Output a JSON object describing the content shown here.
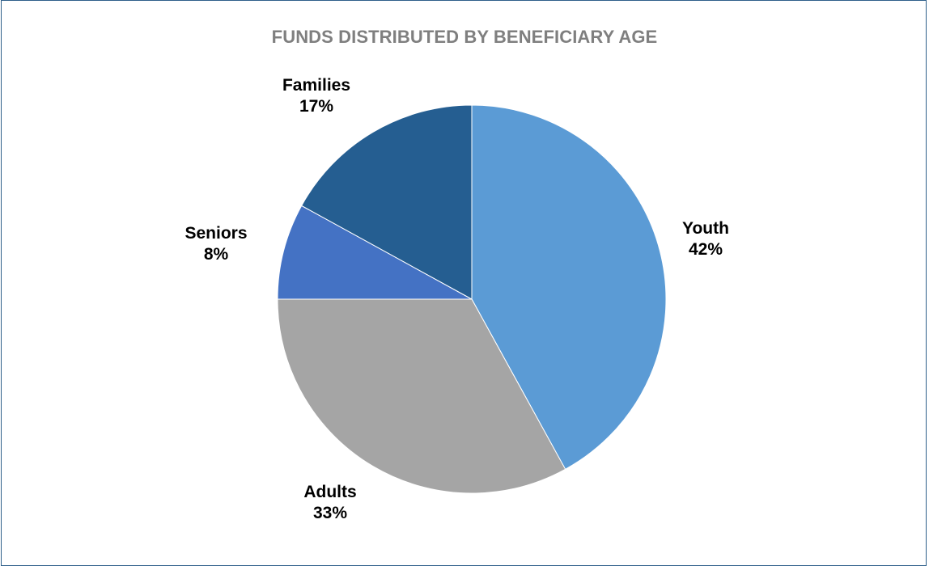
{
  "chart_data": {
    "type": "pie",
    "title": "FUNDS DISTRIBUTED BY BENEFICIARY AGE",
    "categories": [
      "Youth",
      "Adults",
      "Seniors",
      "Families"
    ],
    "values": [
      42,
      33,
      8,
      17
    ],
    "labels": [
      {
        "name": "Youth",
        "pct": "42%"
      },
      {
        "name": "Adults",
        "pct": "33%"
      },
      {
        "name": "Seniors",
        "pct": "8%"
      },
      {
        "name": "Families",
        "pct": "17%"
      }
    ],
    "colors": [
      "#5b9bd5",
      "#a5a5a5",
      "#4472c4",
      "#255e91"
    ],
    "start": "12 o'clock",
    "direction": "clockwise",
    "legend": "none"
  }
}
